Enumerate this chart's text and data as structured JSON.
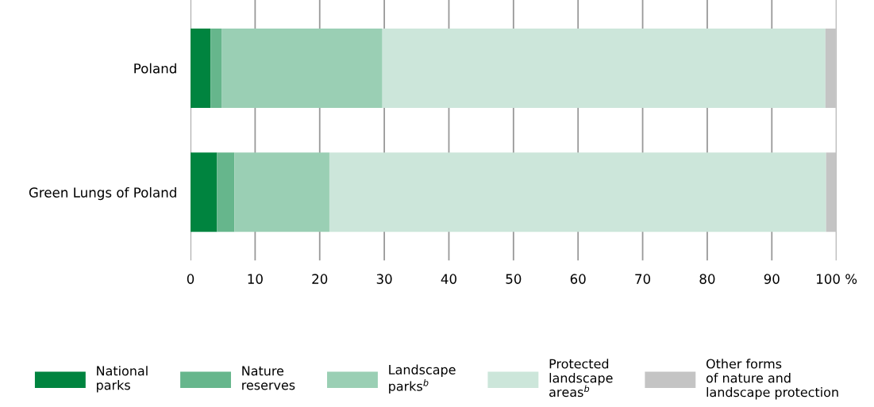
{
  "chart_data": {
    "type": "bar",
    "orientation": "horizontal",
    "stacked": true,
    "categories": [
      "Poland",
      "Green Lungs of Poland"
    ],
    "series": [
      {
        "name": "National\nparks",
        "color": "#00843f",
        "values": [
          3.1,
          4.1
        ]
      },
      {
        "name": "Nature\nreserves",
        "color": "#66b68c",
        "values": [
          1.7,
          2.7
        ]
      },
      {
        "name": "Landscape\nparks$^{b}$",
        "color": "#9acfb4",
        "values": [
          24.9,
          14.7
        ]
      },
      {
        "name": "Protected\nlandscape\nareas$^{b}$",
        "color": "#cce6da",
        "values": [
          68.6,
          76.9
        ]
      },
      {
        "name": "Other forms\nof nature and\nlandscape protection",
        "color": "#c4c4c4",
        "values": [
          1.6,
          1.6
        ]
      }
    ],
    "xlim": [
      0,
      100
    ],
    "xticks": [
      0,
      10,
      20,
      30,
      40,
      50,
      60,
      70,
      80,
      90,
      {
        "value": 100,
        "label": "100 %"
      }
    ],
    "grid": "x",
    "legend": "bottom"
  }
}
